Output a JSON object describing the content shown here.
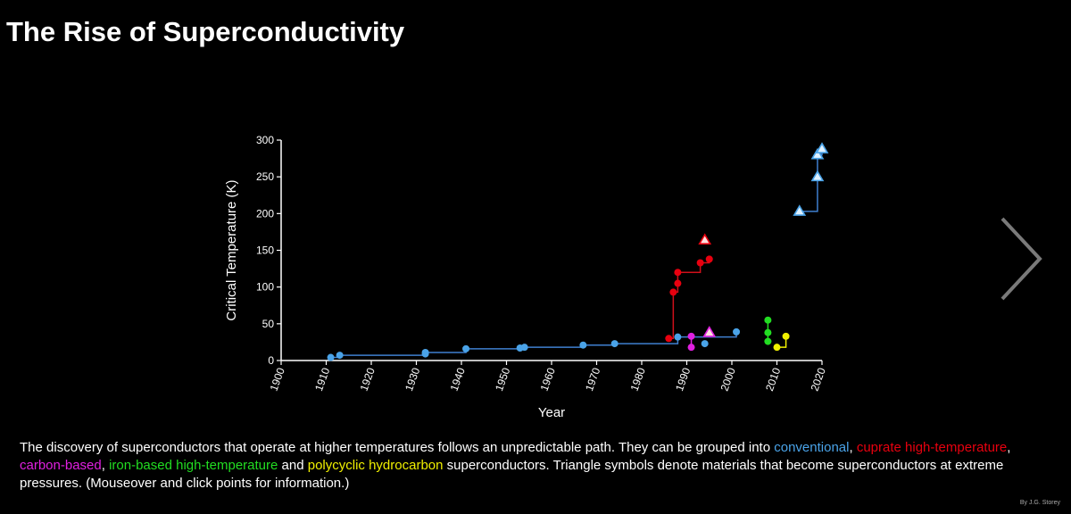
{
  "title": "The Rise of Superconductivity",
  "caption": {
    "part1": "The discovery of superconductors that operate at higher temperatures follows an unpredictable path. They can be grouped into ",
    "conventional": "conventional",
    "sep1": ", ",
    "cuprate": "cuprate high-temperature",
    "sep2": ", ",
    "carbon": "carbon-based",
    "sep3": ", ",
    "iron": "iron-based high-temperature",
    "and": " and ",
    "hydrocarbon": "polycyclic hydrocarbon",
    "part2": " superconductors. Triangle symbols denote materials that become superconductors at extreme pressures. (Mouseover and click points for information.)"
  },
  "credit": "By J.G. Storey",
  "colors": {
    "conventional": "#4aa3e8",
    "cuprate": "#e8000f",
    "carbon": "#e020e0",
    "iron": "#22dd22",
    "hydrocarbon": "#f0f000",
    "step_line_conventional": "#3f7fd0",
    "step_line_cuprate": "#d0101a",
    "triangle_fill_conventional": "#dff1ff",
    "triangle_fill_cuprate": "#ffe0e0"
  },
  "icons": {
    "next": "chevron-right-icon"
  },
  "chart_data": {
    "type": "scatter",
    "xlabel": "Year",
    "ylabel": "Critical Temperature (K)",
    "xlim": [
      1900,
      2020
    ],
    "ylim": [
      0,
      300
    ],
    "xticks": [
      1900,
      1910,
      1920,
      1930,
      1940,
      1950,
      1960,
      1970,
      1980,
      1990,
      2000,
      2010,
      2020
    ],
    "yticks": [
      0,
      50,
      100,
      150,
      200,
      250,
      300
    ],
    "grid": false,
    "legend": "none",
    "series": [
      {
        "name": "conventional",
        "marker": "circle",
        "points": [
          [
            1911,
            4.2
          ],
          [
            1913,
            7.2
          ],
          [
            1932,
            9
          ],
          [
            1932,
            11
          ],
          [
            1941,
            16
          ],
          [
            1953,
            17
          ],
          [
            1954,
            18
          ],
          [
            1967,
            21
          ],
          [
            1974,
            23
          ],
          [
            1988,
            32
          ],
          [
            1994,
            23
          ],
          [
            2001,
            39
          ]
        ],
        "step": [
          [
            1911,
            4.2
          ],
          [
            1913,
            7.2
          ],
          [
            1932,
            11
          ],
          [
            1941,
            16
          ],
          [
            1953,
            17
          ],
          [
            1954,
            18
          ],
          [
            1967,
            21
          ],
          [
            1974,
            23
          ],
          [
            1988,
            32
          ],
          [
            2001,
            39
          ]
        ]
      },
      {
        "name": "conventional-pressure",
        "marker": "triangle",
        "points": [
          [
            2015,
            203
          ],
          [
            2019,
            250
          ],
          [
            2019,
            280
          ],
          [
            2020,
            288
          ]
        ],
        "step": [
          [
            2015,
            203
          ],
          [
            2019,
            250
          ],
          [
            2019,
            280
          ],
          [
            2020,
            288
          ]
        ]
      },
      {
        "name": "cuprate",
        "marker": "circle",
        "points": [
          [
            1986,
            30
          ],
          [
            1987,
            93
          ],
          [
            1988,
            105
          ],
          [
            1988,
            120
          ],
          [
            1993,
            133
          ],
          [
            1995,
            138
          ]
        ],
        "step": [
          [
            1986,
            30
          ],
          [
            1987,
            93
          ],
          [
            1988,
            120
          ],
          [
            1993,
            133
          ],
          [
            1995,
            138
          ]
        ]
      },
      {
        "name": "cuprate-pressure",
        "marker": "triangle",
        "points": [
          [
            1994,
            164
          ]
        ]
      },
      {
        "name": "carbon",
        "marker": "circle",
        "points": [
          [
            1991,
            33
          ],
          [
            1991,
            18
          ]
        ]
      },
      {
        "name": "carbon-pressure",
        "marker": "triangle",
        "points": [
          [
            1995,
            38
          ]
        ]
      },
      {
        "name": "iron",
        "marker": "circle",
        "points": [
          [
            2008,
            26
          ],
          [
            2008,
            38
          ],
          [
            2008,
            55
          ]
        ]
      },
      {
        "name": "hydrocarbon",
        "marker": "circle",
        "points": [
          [
            2010,
            18
          ],
          [
            2012,
            33
          ]
        ]
      }
    ]
  }
}
